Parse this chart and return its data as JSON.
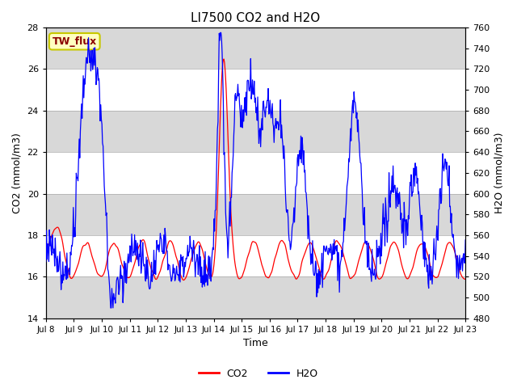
{
  "title": "LI7500 CO2 and H2O",
  "xlabel": "Time",
  "ylabel_left": "CO2 (mmol/m3)",
  "ylabel_right": "H2O (mmol/m3)",
  "annotation_text": "TW_flux",
  "annotation_bg": "#FFFFC0",
  "annotation_border": "#C8C800",
  "annotation_text_color": "#8B0000",
  "ylim_left": [
    14,
    28
  ],
  "ylim_right": [
    480,
    760
  ],
  "yticks_left": [
    14,
    16,
    18,
    20,
    22,
    24,
    26,
    28
  ],
  "yticks_right": [
    480,
    500,
    520,
    540,
    560,
    580,
    600,
    620,
    640,
    660,
    680,
    700,
    720,
    740,
    760
  ],
  "x_tick_labels": [
    "Jul 8",
    "Jul 9",
    "Jul 10",
    "Jul 11",
    "Jul 12",
    "Jul 13",
    "Jul 14",
    "Jul 15",
    "Jul 16",
    "Jul 17",
    "Jul 18",
    "Jul 19",
    "Jul 20",
    "Jul 21",
    "Jul 22",
    "Jul 23"
  ],
  "co2_color": "#FF0000",
  "h2o_color": "#0000FF",
  "bg_color": "#FFFFFF",
  "plot_bg_color": "#D8D8D8",
  "white_band_color": "#FFFFFF",
  "legend_co2": "CO2",
  "legend_h2o": "H2O"
}
